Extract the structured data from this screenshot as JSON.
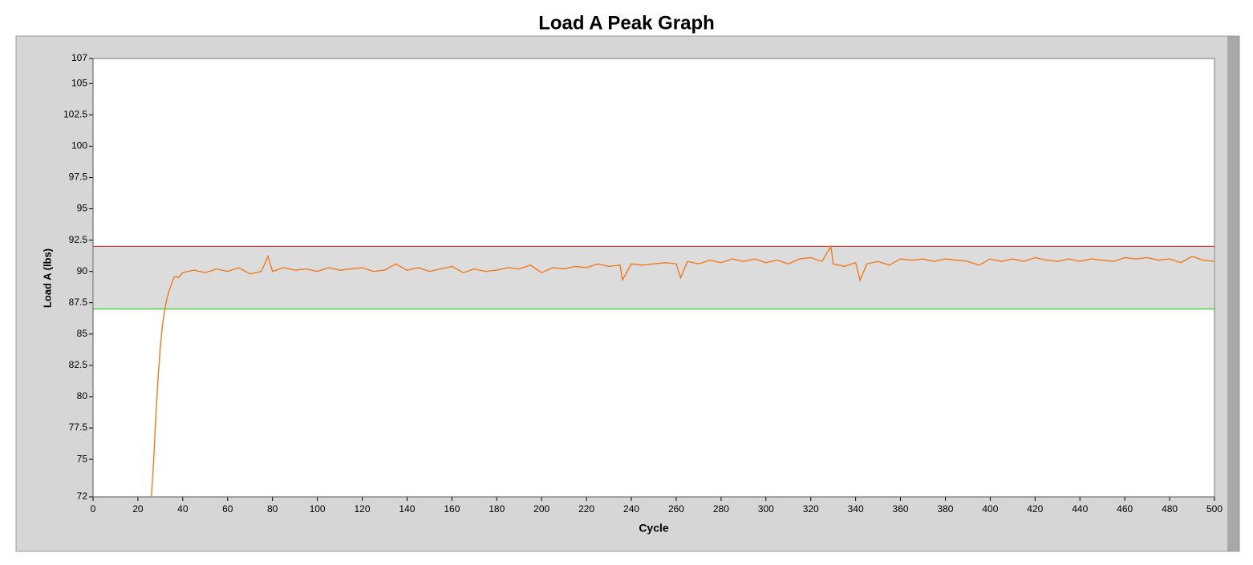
{
  "chart_data": {
    "type": "line",
    "title": "Load A Peak Graph",
    "x_label": "Cycle",
    "y_label": "Load A (lbs)",
    "x": [
      26,
      27,
      28,
      29,
      30,
      31,
      32,
      33,
      34,
      35,
      36,
      37,
      38,
      40,
      45,
      50,
      55,
      60,
      65,
      70,
      75,
      78,
      80,
      85,
      90,
      95,
      100,
      105,
      110,
      115,
      120,
      125,
      130,
      135,
      140,
      145,
      150,
      155,
      160,
      165,
      170,
      175,
      180,
      185,
      190,
      195,
      200,
      205,
      210,
      215,
      220,
      225,
      230,
      235,
      236,
      240,
      245,
      250,
      255,
      260,
      262,
      265,
      270,
      275,
      280,
      285,
      290,
      295,
      300,
      305,
      310,
      315,
      320,
      325,
      329,
      330,
      335,
      340,
      342,
      345,
      350,
      355,
      360,
      365,
      370,
      375,
      380,
      385,
      390,
      395,
      400,
      405,
      410,
      415,
      420,
      425,
      430,
      435,
      440,
      445,
      450,
      455,
      460,
      465,
      470,
      475,
      480,
      485,
      490,
      495,
      500
    ],
    "values": [
      72,
      74.8,
      78.5,
      81.5,
      84,
      85.8,
      87,
      87.9,
      88.5,
      89,
      89.5,
      89.6,
      89.5,
      89.9,
      90.1,
      89.9,
      90.2,
      90.0,
      90.3,
      89.8,
      90.0,
      91.2,
      90.0,
      90.3,
      90.1,
      90.2,
      90.0,
      90.3,
      90.1,
      90.2,
      90.3,
      90.0,
      90.1,
      90.6,
      90.1,
      90.3,
      90.0,
      90.2,
      90.4,
      89.9,
      90.2,
      90.0,
      90.1,
      90.3,
      90.2,
      90.5,
      89.9,
      90.3,
      90.2,
      90.4,
      90.3,
      90.6,
      90.4,
      90.5,
      89.3,
      90.6,
      90.5,
      90.6,
      90.7,
      90.6,
      89.5,
      90.8,
      90.6,
      90.9,
      90.7,
      91.0,
      90.8,
      91.0,
      90.7,
      90.9,
      90.6,
      91.0,
      91.1,
      90.8,
      92.0,
      90.6,
      90.4,
      90.7,
      89.3,
      90.6,
      90.8,
      90.5,
      91.0,
      90.9,
      91.0,
      90.8,
      91.0,
      90.9,
      90.8,
      90.5,
      91.0,
      90.8,
      91.0,
      90.8,
      91.1,
      90.9,
      90.8,
      91.0,
      90.8,
      91.0,
      90.9,
      90.8,
      91.1,
      91.0,
      91.1,
      90.9,
      91.0,
      90.7,
      91.2,
      90.9,
      90.8
    ],
    "color": "#f07a20",
    "xlim": [
      0,
      500
    ],
    "xticks": [
      0,
      20,
      40,
      60,
      80,
      100,
      120,
      140,
      160,
      180,
      200,
      220,
      240,
      260,
      280,
      300,
      320,
      340,
      360,
      380,
      400,
      420,
      440,
      460,
      480,
      500
    ],
    "ylim": [
      72,
      107
    ],
    "yticks": [
      72,
      75,
      77.5,
      80,
      82.5,
      85,
      87.5,
      90,
      92.5,
      95,
      97.5,
      100,
      102.5,
      105,
      107
    ],
    "limit_lines": [
      {
        "value": 92,
        "color": "#e03030"
      },
      {
        "value": 87,
        "color": "#22cc22"
      }
    ]
  }
}
